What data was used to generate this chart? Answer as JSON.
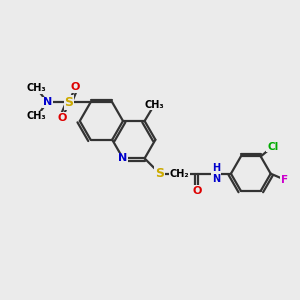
{
  "bg": "#ebebeb",
  "bond_color": "#333333",
  "colors": {
    "N": "#0000cc",
    "O": "#dd0000",
    "S": "#ccaa00",
    "Cl": "#00aa00",
    "F": "#cc00cc",
    "C": "#000000",
    "H": "#666666"
  },
  "bl": 0.72,
  "lw": 1.6,
  "fs": 7.5,
  "xlim": [
    0,
    10
  ],
  "ylim": [
    0,
    10
  ],
  "figsize": [
    3.0,
    3.0
  ],
  "dpi": 100
}
